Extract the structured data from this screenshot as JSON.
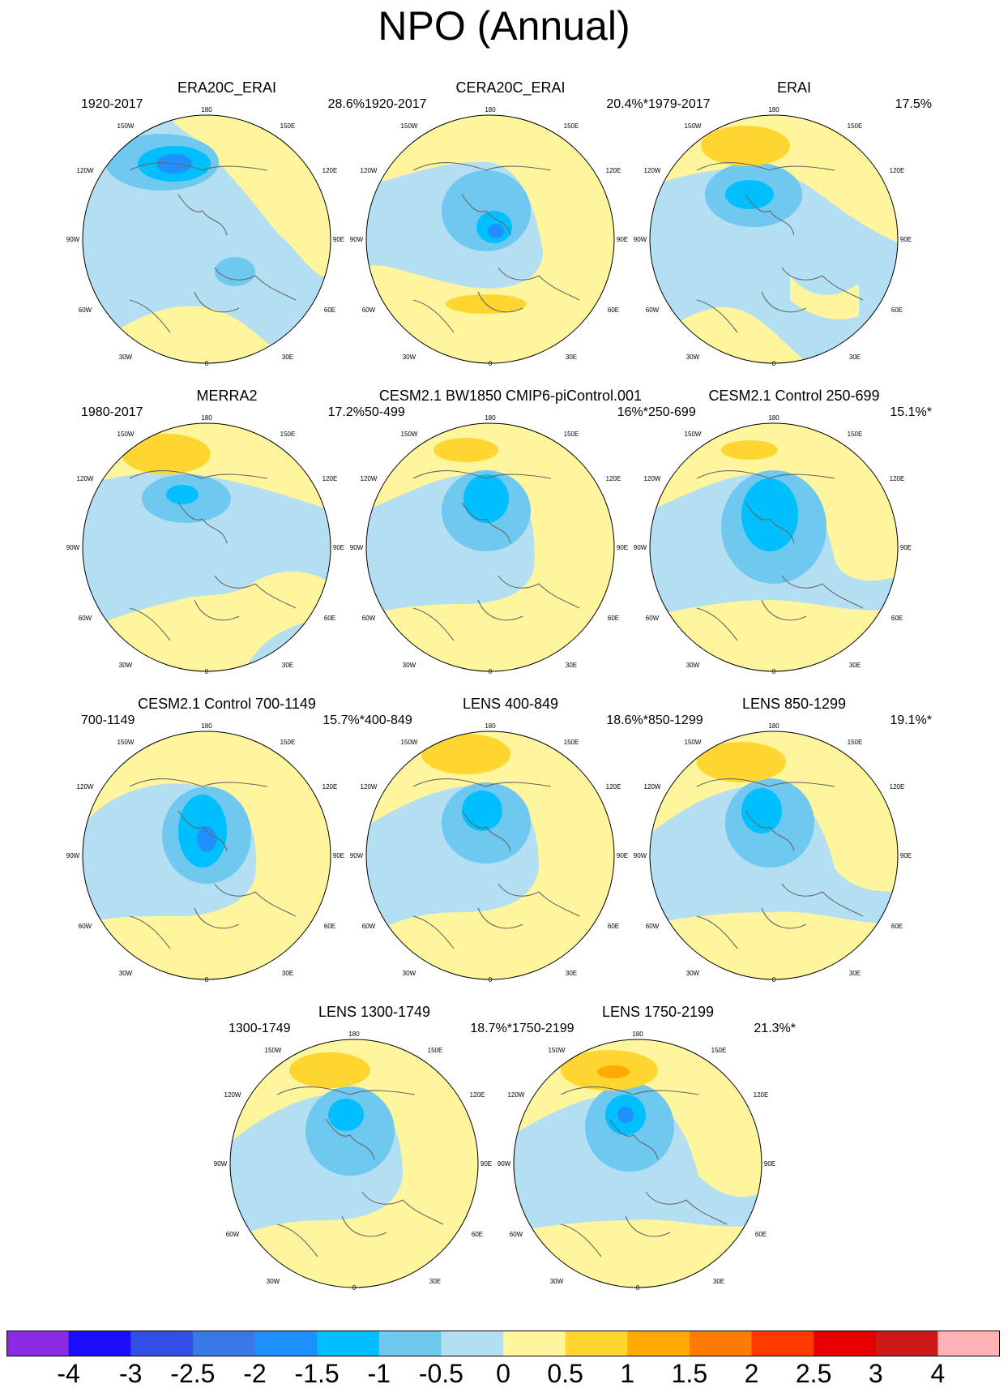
{
  "title": "NPO (Annual)",
  "lon_labels": [
    "180",
    "150W",
    "120W",
    "90W",
    "60W",
    "30W",
    "0",
    "30E",
    "60E",
    "90E",
    "120E",
    "150E"
  ],
  "panels": [
    {
      "title": "ERA20C_ERAI",
      "period": "1920-2017",
      "pct": "28.6%"
    },
    {
      "title": "CERA20C_ERAI",
      "period": "1920-2017",
      "pct": "20.4%*"
    },
    {
      "title": "ERAI",
      "period": "1979-2017",
      "pct": "17.5%"
    },
    {
      "title": "MERRA2",
      "period": "1980-2017",
      "pct": "17.2%"
    },
    {
      "title": "CESM2.1 BW1850 CMIP6-piControl.001",
      "period": "50-499",
      "pct": "16%*"
    },
    {
      "title": "CESM2.1 Control 250-699",
      "period": "250-699",
      "pct": "15.1%*"
    },
    {
      "title": "CESM2.1 Control 700-1149",
      "period": "700-1149",
      "pct": "15.7%*"
    },
    {
      "title": "LENS 400-849",
      "period": "400-849",
      "pct": "18.6%*"
    },
    {
      "title": "LENS 850-1299",
      "period": "850-1299",
      "pct": "19.1%*"
    },
    {
      "title": "LENS 1300-1749",
      "period": "1300-1749",
      "pct": "18.7%*"
    },
    {
      "title": "LENS 1750-2199",
      "period": "1750-2199",
      "pct": "21.3%*"
    }
  ],
  "colorbar": {
    "colors": [
      "#8a2be2",
      "#1a0dff",
      "#2f4fe6",
      "#3a78e8",
      "#1e90ff",
      "#00bfff",
      "#6fc8f0",
      "#b4dff2",
      "#fff59d",
      "#ffd530",
      "#ffaa00",
      "#ff7b00",
      "#ff3a00",
      "#e60000",
      "#cc1a1a",
      "#ffb3b3"
    ],
    "labels": [
      "-4",
      "-3",
      "-2.5",
      "-2",
      "-1.5",
      "-1",
      "-0.5",
      "0",
      "0.5",
      "1",
      "1.5",
      "2",
      "2.5",
      "3",
      "4"
    ]
  },
  "map_colors": {
    "neutral_neg": "#b4dff2",
    "neg1": "#6fc8f0",
    "neg2": "#00bfff",
    "neg3": "#1e90ff",
    "pos1": "#fff59d",
    "pos2": "#ffd530",
    "pos3": "#ffaa00",
    "coast": "#666666"
  }
}
